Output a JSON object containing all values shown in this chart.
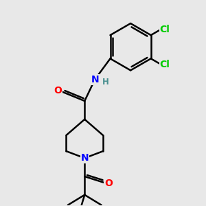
{
  "background_color": "#e8e8e8",
  "bond_color": "#000000",
  "bond_width": 1.8,
  "atom_colors": {
    "O": "#ff0000",
    "N": "#0000ff",
    "Cl": "#00cc00",
    "H": "#4a9090",
    "C": "#000000"
  },
  "font_size_atom": 10,
  "font_size_H": 8.5
}
